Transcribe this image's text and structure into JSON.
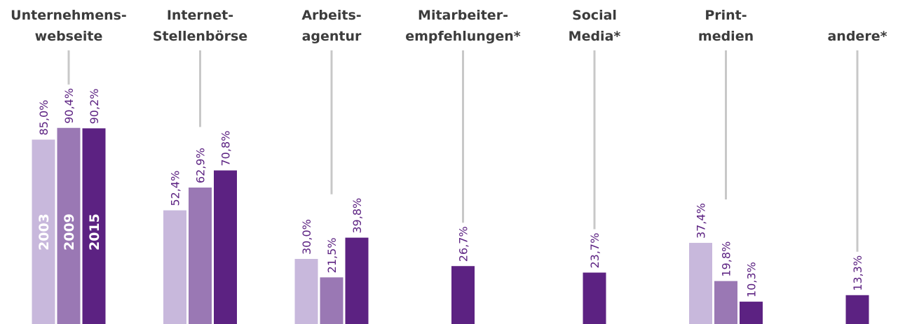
{
  "chart_data": {
    "type": "bar",
    "categories": [
      [
        "Unternehmens-",
        "webseite"
      ],
      [
        "Internet-",
        "Stellenbörse"
      ],
      [
        "Arbeits-",
        "agentur"
      ],
      [
        "Mitarbeiter-",
        "empfehlungen*"
      ],
      [
        "Social",
        "Media*"
      ],
      [
        "Print-",
        "medien"
      ],
      [
        "andere*"
      ]
    ],
    "series": [
      {
        "name": "2003",
        "color": "#c8b8dc",
        "values": [
          85.0,
          52.4,
          30.0,
          null,
          null,
          37.4,
          null
        ],
        "value_labels": [
          "85,0%",
          "52,4%",
          "30,0%",
          null,
          null,
          "37,4%",
          null
        ]
      },
      {
        "name": "2009",
        "color": "#9a78b4",
        "values": [
          90.4,
          62.9,
          21.5,
          null,
          null,
          19.8,
          null
        ],
        "value_labels": [
          "90,4%",
          "62,9%",
          "21,5%",
          null,
          null,
          "19,8%",
          null
        ]
      },
      {
        "name": "2015",
        "color": "#5c2282",
        "values": [
          90.2,
          70.8,
          39.8,
          26.7,
          23.7,
          10.3,
          13.3
        ],
        "value_labels": [
          "90,2%",
          "70,8%",
          "39,8%",
          "26,7%",
          "23,7%",
          "10,3%",
          "13,3%"
        ]
      }
    ]
  }
}
